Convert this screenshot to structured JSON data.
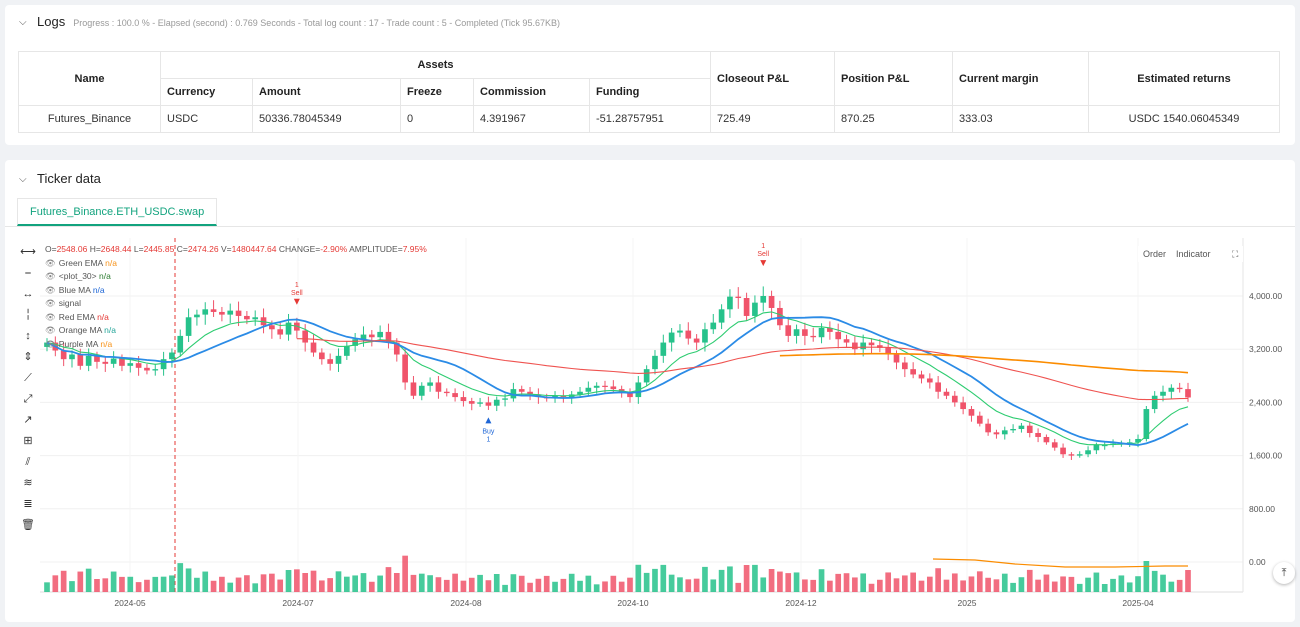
{
  "logs": {
    "title": "Logs",
    "summary": "Progress : 100.0 % - Elapsed (second) : 0.769  Seconds - Total log count : 17 - Trade count : 5 - Completed (Tick 95.67KB)",
    "assets_header": "Assets",
    "columns": {
      "name": "Name",
      "currency": "Currency",
      "amount": "Amount",
      "freeze": "Freeze",
      "commission": "Commission",
      "funding": "Funding",
      "closeout": "Closeout P&L",
      "position": "Position P&L",
      "margin": "Current margin",
      "returns": "Estimated returns"
    },
    "row": {
      "name": "Futures_Binance",
      "currency": "USDC",
      "amount": "50336.78045349",
      "freeze": "0",
      "commission": "4.391967",
      "funding": "-51.28757951",
      "closeout": "725.49",
      "position": "870.25",
      "margin": "333.03",
      "returns": "USDC 1540.06045349"
    }
  },
  "ticker": {
    "title": "Ticker data",
    "tab": "Futures_Binance.ETH_USDC.swap",
    "buttons": {
      "order": "Order",
      "indicator": "Indicator",
      "expand": "⛶"
    },
    "ohlc_line": {
      "o_label": "O=",
      "o": "2548.06",
      "h_label": "H=",
      "h": "2648.44",
      "l_label": "L=",
      "l": "2445.85",
      "c_label": "C=",
      "c": "2474.26",
      "v_label": "V=",
      "v": "1480447.64",
      "change_label": "CHANGE=",
      "change": "-2.90%",
      "amp_label": "AMPLITUDE=",
      "amp": "7.95%"
    },
    "legend": [
      {
        "name": "Green EMA",
        "value": "n/a",
        "color": "#f7931a"
      },
      {
        "name": "<plot_30>",
        "value": "n/a",
        "color": "#2e7d32"
      },
      {
        "name": "Blue MA",
        "value": "n/a",
        "color": "#1e66d6"
      },
      {
        "name": "signal",
        "value": "",
        "color": "#555555"
      },
      {
        "name": "Red EMA",
        "value": "n/a",
        "color": "#e53935"
      },
      {
        "name": "Orange MA",
        "value": "n/a",
        "color": "#26a69a"
      },
      {
        "name": "Purple MA",
        "value": "n/a",
        "color": "#f7931a"
      }
    ],
    "scroll_top": "⤒"
  },
  "chart_data": {
    "type": "candlestick",
    "y_ticks": [
      "4,000.00",
      "3,200.00",
      "2,400.00",
      "1,600.00",
      "800.00",
      "0.00"
    ],
    "y_tick_values": [
      4000,
      3200,
      2400,
      1600,
      800,
      0
    ],
    "x_ticks": [
      "2024-05",
      "2024-07",
      "2024-08",
      "2024-10",
      "2024-12",
      "2025",
      "2025-04"
    ],
    "colors": {
      "up": "#26c28b",
      "down": "#f0536a",
      "green_ema": "#2ecc71",
      "blue_ma": "#2b8be6",
      "red_ema": "#ef5350",
      "orange_ma": "#fb8c00"
    },
    "closes": [
      3300,
      3180,
      3050,
      3120,
      2950,
      3100,
      3010,
      2980,
      3060,
      2950,
      2990,
      2920,
      2880,
      2900,
      3050,
      3150,
      3400,
      3680,
      3720,
      3800,
      3760,
      3720,
      3780,
      3700,
      3650,
      3680,
      3560,
      3500,
      3420,
      3600,
      3480,
      3300,
      3150,
      3050,
      2980,
      3100,
      3250,
      3350,
      3420,
      3380,
      3460,
      3300,
      3120,
      2700,
      2500,
      2650,
      2700,
      2560,
      2540,
      2480,
      2420,
      2380,
      2400,
      2350,
      2440,
      2460,
      2600,
      2560,
      2520,
      2480,
      2460,
      2500,
      2480,
      2520,
      2560,
      2620,
      2650,
      2640,
      2600,
      2540,
      2480,
      2700,
      2900,
      3100,
      3300,
      3450,
      3480,
      3360,
      3300,
      3500,
      3600,
      3800,
      3990,
      3970,
      3700,
      3900,
      4000,
      3820,
      3560,
      3400,
      3500,
      3400,
      3380,
      3520,
      3460,
      3350,
      3300,
      3200,
      3300,
      3260,
      3220,
      3120,
      3000,
      2900,
      2820,
      2760,
      2700,
      2560,
      2500,
      2400,
      2300,
      2200,
      2080,
      1950,
      1920,
      1980,
      2000,
      2050,
      1940,
      1880,
      1800,
      1720,
      1620,
      1600,
      1620,
      1680,
      1760,
      1760,
      1780,
      1790,
      1800,
      1850,
      2300,
      2500,
      2560,
      2620,
      2600,
      2474
    ],
    "signals": [
      {
        "label": "Sell",
        "count": "1",
        "index": 30
      },
      {
        "label": "Buy",
        "count": "1",
        "index": 53
      },
      {
        "label": "Sell",
        "count": "1",
        "index": 86
      }
    ]
  }
}
